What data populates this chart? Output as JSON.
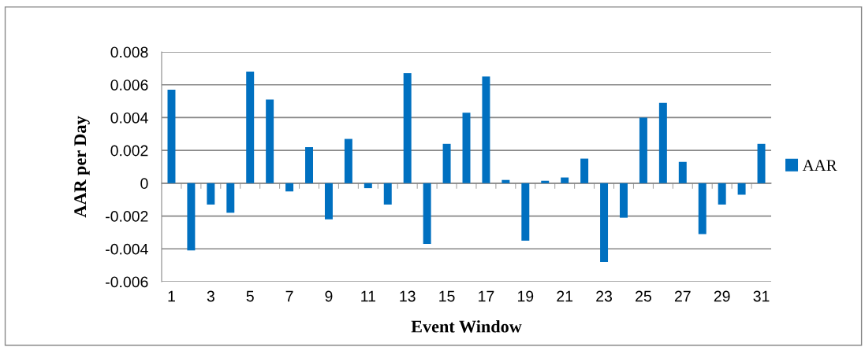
{
  "chart_data": {
    "type": "bar",
    "xlabel": "Event Window",
    "ylabel": "AAR per Day",
    "categories": [
      "1",
      null,
      "3",
      null,
      "5",
      null,
      "7",
      null,
      "9",
      null,
      "11",
      null,
      "13",
      null,
      "15",
      null,
      "17",
      null,
      "19",
      null,
      "21",
      null,
      "23",
      null,
      "25",
      null,
      "27",
      null,
      "29",
      null,
      "31"
    ],
    "series": [
      {
        "name": "AAR",
        "color": "#0070c0",
        "values": [
          0.0057,
          -0.0041,
          -0.0013,
          -0.0018,
          0.0068,
          0.0051,
          -0.0005,
          0.0022,
          -0.0022,
          0.0027,
          -0.0003,
          -0.0013,
          0.0067,
          -0.0037,
          0.0024,
          0.0043,
          0.0065,
          0.0002,
          -0.0035,
          0.00015,
          0.00035,
          0.0015,
          -0.0048,
          -0.0021,
          0.004,
          0.0049,
          0.0013,
          -0.0031,
          -0.0013,
          -0.0007,
          0.0024
        ]
      }
    ],
    "ylim": [
      -0.006,
      0.008
    ],
    "yticks": [
      {
        "value": -0.006,
        "label": "-0.006"
      },
      {
        "value": -0.004,
        "label": "-0.004"
      },
      {
        "value": -0.002,
        "label": "-0.002"
      },
      0,
      0.002,
      0.004,
      0.006,
      0.008
    ],
    "grid": "y",
    "legend": "right"
  }
}
